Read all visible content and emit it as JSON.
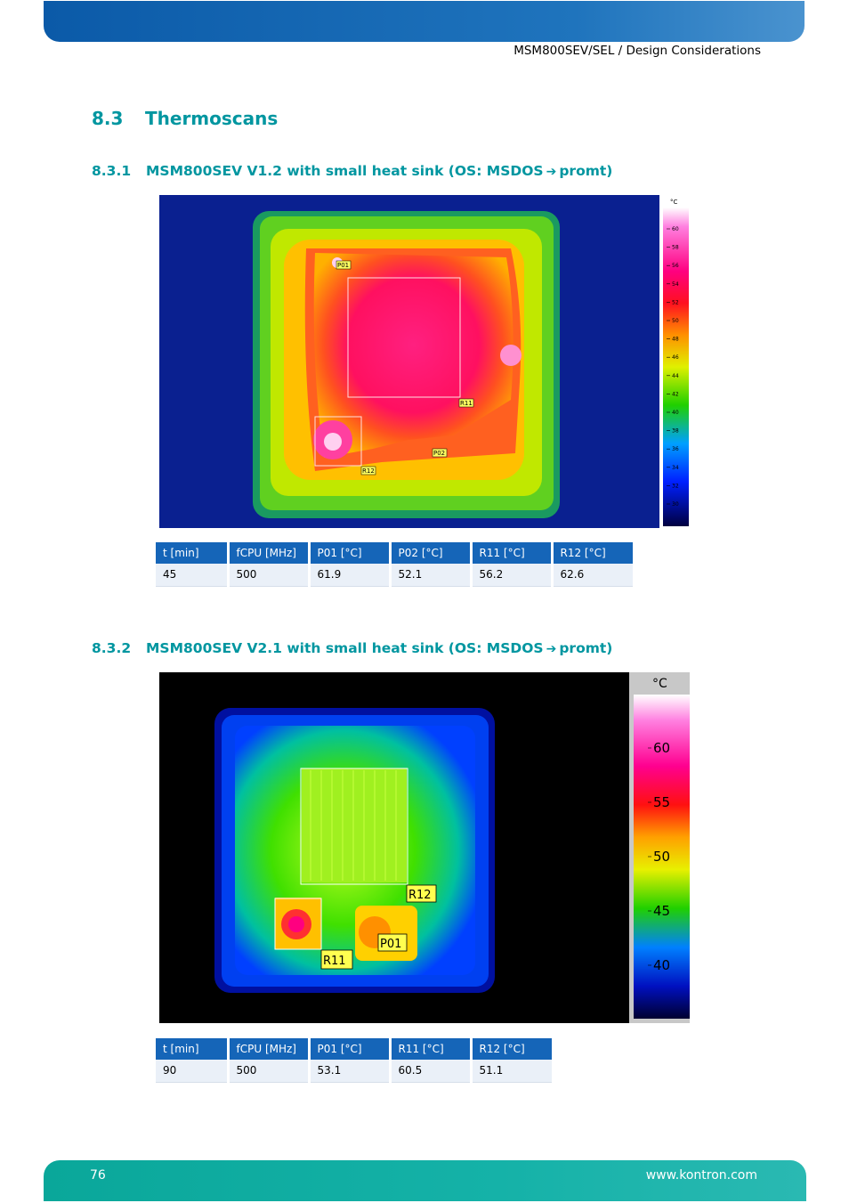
{
  "header": {
    "title": "MSM800SEV/SEL / Design Considerations"
  },
  "section": {
    "num": "8.3",
    "title": "Thermoscans"
  },
  "sub1": {
    "num": "8.3.1",
    "title_a": "MSM800SEV V1.2 with small heat sink (OS: MSDOS",
    "arrow": "➔",
    "title_b": "promt)",
    "scale_unit": "°C",
    "scale_ticks": [
      "60",
      "58",
      "56",
      "54",
      "52",
      "50",
      "48",
      "46",
      "44",
      "42",
      "40",
      "38",
      "36",
      "34",
      "32",
      "30"
    ],
    "labels": [
      "P01",
      "P02",
      "R11",
      "R12"
    ],
    "table": {
      "headers": [
        "t [min]",
        "fCPU [MHz]",
        "P01 [°C]",
        "P02 [°C]",
        "R11 [°C]",
        "R12 [°C]"
      ],
      "rows": [
        [
          "45",
          "500",
          "61.9",
          "52.1",
          "56.2",
          "62.6"
        ]
      ]
    }
  },
  "sub2": {
    "num": "8.3.2",
    "title_a": "MSM800SEV V2.1 with small heat sink (OS: MSDOS",
    "arrow": "➔",
    "title_b": "promt)",
    "scale_unit": "°C",
    "scale_ticks": [
      "60",
      "55",
      "50",
      "45",
      "40"
    ],
    "labels": [
      "R12",
      "P01",
      "R11"
    ],
    "table": {
      "headers": [
        "t [min]",
        "fCPU [MHz]",
        "P01 [°C]",
        "R11 [°C]",
        "R12 [°C]"
      ],
      "rows": [
        [
          "90",
          "500",
          "53.1",
          "60.5",
          "51.1"
        ]
      ]
    }
  },
  "footer": {
    "page": "76",
    "url": "www.kontron.com"
  }
}
